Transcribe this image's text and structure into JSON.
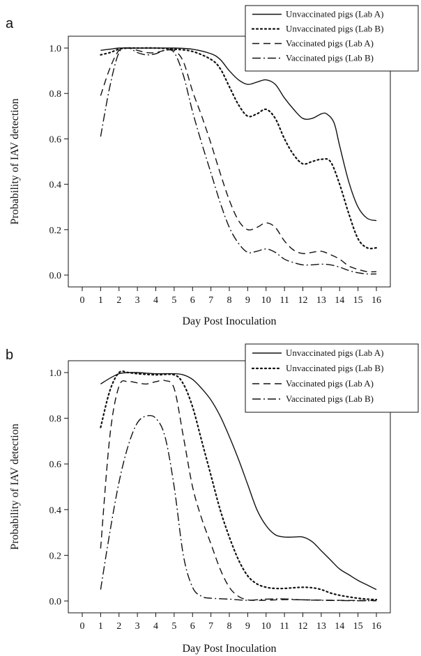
{
  "chart_data": [
    {
      "panel": "a",
      "type": "line",
      "title": "",
      "xlabel": "Day Post Inoculation",
      "ylabel": "Probability of IAV detection",
      "xlim": [
        0,
        16
      ],
      "ylim": [
        0,
        1
      ],
      "x_ticks": [
        "0",
        "1",
        "2",
        "3",
        "4",
        "5",
        "6",
        "7",
        "8",
        "9",
        "10",
        "11",
        "12",
        "13",
        "14",
        "15",
        "16"
      ],
      "y_ticks": [
        "0.0",
        "0.2",
        "0.4",
        "0.6",
        "0.8",
        "1.0"
      ],
      "grid": false,
      "legend_position": "top-right",
      "series": [
        {
          "name": "Unvaccinated pigs (Lab A)",
          "style": "solid",
          "points": [
            [
              1,
              0.99
            ],
            [
              1.5,
              0.995
            ],
            [
              2,
              1.0
            ],
            [
              2.5,
              1.0
            ],
            [
              3,
              1.0
            ],
            [
              4,
              1.0
            ],
            [
              5,
              1.0
            ],
            [
              6,
              0.995
            ],
            [
              7,
              0.975
            ],
            [
              7.5,
              0.95
            ],
            [
              8,
              0.9
            ],
            [
              8.5,
              0.86
            ],
            [
              9,
              0.84
            ],
            [
              9.5,
              0.85
            ],
            [
              10,
              0.86
            ],
            [
              10.5,
              0.84
            ],
            [
              11,
              0.78
            ],
            [
              11.5,
              0.73
            ],
            [
              12,
              0.69
            ],
            [
              12.5,
              0.69
            ],
            [
              13,
              0.71
            ],
            [
              13.3,
              0.71
            ],
            [
              13.7,
              0.67
            ],
            [
              14,
              0.57
            ],
            [
              14.5,
              0.41
            ],
            [
              15,
              0.3
            ],
            [
              15.5,
              0.25
            ],
            [
              16,
              0.24
            ]
          ]
        },
        {
          "name": "Unvaccinated pigs (Lab B)",
          "style": "dotted",
          "points": [
            [
              1,
              0.97
            ],
            [
              1.5,
              0.98
            ],
            [
              2,
              0.995
            ],
            [
              2.5,
              1.0
            ],
            [
              3,
              1.0
            ],
            [
              4,
              1.0
            ],
            [
              5,
              0.995
            ],
            [
              6,
              0.985
            ],
            [
              7,
              0.95
            ],
            [
              7.5,
              0.91
            ],
            [
              8,
              0.83
            ],
            [
              8.5,
              0.75
            ],
            [
              9,
              0.7
            ],
            [
              9.5,
              0.71
            ],
            [
              10,
              0.73
            ],
            [
              10.5,
              0.69
            ],
            [
              11,
              0.6
            ],
            [
              11.5,
              0.53
            ],
            [
              12,
              0.49
            ],
            [
              12.5,
              0.5
            ],
            [
              13,
              0.51
            ],
            [
              13.5,
              0.5
            ],
            [
              14,
              0.4
            ],
            [
              14.5,
              0.27
            ],
            [
              15,
              0.16
            ],
            [
              15.5,
              0.12
            ],
            [
              16,
              0.12
            ]
          ]
        },
        {
          "name": "Vaccinated pigs (Lab A)",
          "style": "dashed",
          "points": [
            [
              1,
              0.79
            ],
            [
              1.5,
              0.91
            ],
            [
              2,
              0.99
            ],
            [
              2.5,
              1.0
            ],
            [
              3,
              0.99
            ],
            [
              3.5,
              0.98
            ],
            [
              4,
              0.98
            ],
            [
              4.5,
              0.99
            ],
            [
              5,
              0.99
            ],
            [
              5.5,
              0.94
            ],
            [
              6,
              0.81
            ],
            [
              6.5,
              0.7
            ],
            [
              7,
              0.58
            ],
            [
              7.5,
              0.45
            ],
            [
              8,
              0.33
            ],
            [
              8.5,
              0.24
            ],
            [
              9,
              0.2
            ],
            [
              9.5,
              0.21
            ],
            [
              10,
              0.23
            ],
            [
              10.5,
              0.21
            ],
            [
              11,
              0.15
            ],
            [
              11.5,
              0.11
            ],
            [
              12,
              0.095
            ],
            [
              12.5,
              0.1
            ],
            [
              13,
              0.105
            ],
            [
              13.5,
              0.09
            ],
            [
              14,
              0.07
            ],
            [
              14.5,
              0.04
            ],
            [
              15,
              0.025
            ],
            [
              15.5,
              0.015
            ],
            [
              16,
              0.015
            ]
          ]
        },
        {
          "name": "Vaccinated pigs (Lab B)",
          "style": "dashdot",
          "points": [
            [
              1,
              0.61
            ],
            [
              1.5,
              0.83
            ],
            [
              2,
              0.98
            ],
            [
              2.5,
              1.0
            ],
            [
              3,
              0.98
            ],
            [
              3.5,
              0.97
            ],
            [
              4,
              0.975
            ],
            [
              4.5,
              0.99
            ],
            [
              5,
              0.98
            ],
            [
              5.5,
              0.88
            ],
            [
              6,
              0.72
            ],
            [
              6.5,
              0.58
            ],
            [
              7,
              0.45
            ],
            [
              7.5,
              0.32
            ],
            [
              8,
              0.21
            ],
            [
              8.5,
              0.14
            ],
            [
              9,
              0.1
            ],
            [
              9.5,
              0.105
            ],
            [
              10,
              0.115
            ],
            [
              10.5,
              0.1
            ],
            [
              11,
              0.07
            ],
            [
              11.5,
              0.055
            ],
            [
              12,
              0.045
            ],
            [
              12.5,
              0.045
            ],
            [
              13,
              0.048
            ],
            [
              13.5,
              0.045
            ],
            [
              14,
              0.035
            ],
            [
              14.5,
              0.02
            ],
            [
              15,
              0.01
            ],
            [
              15.5,
              0.005
            ],
            [
              16,
              0.005
            ]
          ]
        }
      ]
    },
    {
      "panel": "b",
      "type": "line",
      "title": "",
      "xlabel": "Day Post Inoculation",
      "ylabel": "Probability of IAV detection",
      "xlim": [
        0,
        16
      ],
      "ylim": [
        0,
        1
      ],
      "x_ticks": [
        "0",
        "1",
        "2",
        "3",
        "4",
        "5",
        "6",
        "7",
        "8",
        "9",
        "10",
        "11",
        "12",
        "13",
        "14",
        "15",
        "16"
      ],
      "y_ticks": [
        "0.0",
        "0.2",
        "0.4",
        "0.6",
        "0.8",
        "1.0"
      ],
      "grid": false,
      "legend_position": "top-right",
      "series": [
        {
          "name": "Unvaccinated pigs (Lab A)",
          "style": "solid",
          "points": [
            [
              1,
              0.95
            ],
            [
              1.5,
              0.975
            ],
            [
              2,
              0.995
            ],
            [
              2.5,
              1.0
            ],
            [
              3,
              1.0
            ],
            [
              4,
              0.995
            ],
            [
              5,
              0.995
            ],
            [
              5.5,
              0.99
            ],
            [
              6,
              0.97
            ],
            [
              6.5,
              0.93
            ],
            [
              7,
              0.88
            ],
            [
              7.5,
              0.81
            ],
            [
              8,
              0.72
            ],
            [
              8.5,
              0.62
            ],
            [
              9,
              0.51
            ],
            [
              9.5,
              0.4
            ],
            [
              10,
              0.33
            ],
            [
              10.5,
              0.29
            ],
            [
              11,
              0.28
            ],
            [
              11.5,
              0.28
            ],
            [
              12,
              0.28
            ],
            [
              12.5,
              0.26
            ],
            [
              13,
              0.22
            ],
            [
              13.5,
              0.18
            ],
            [
              14,
              0.14
            ],
            [
              14.5,
              0.115
            ],
            [
              15,
              0.09
            ],
            [
              15.5,
              0.07
            ],
            [
              16,
              0.05
            ]
          ]
        },
        {
          "name": "Unvaccinated pigs (Lab B)",
          "style": "dotted",
          "points": [
            [
              1,
              0.76
            ],
            [
              1.5,
              0.92
            ],
            [
              2,
              1.0
            ],
            [
              2.5,
              1.0
            ],
            [
              3,
              0.995
            ],
            [
              4,
              0.99
            ],
            [
              5,
              0.99
            ],
            [
              5.5,
              0.95
            ],
            [
              6,
              0.85
            ],
            [
              6.5,
              0.7
            ],
            [
              7,
              0.55
            ],
            [
              7.5,
              0.4
            ],
            [
              8,
              0.28
            ],
            [
              8.5,
              0.18
            ],
            [
              9,
              0.11
            ],
            [
              9.5,
              0.075
            ],
            [
              10,
              0.06
            ],
            [
              10.5,
              0.055
            ],
            [
              11,
              0.055
            ],
            [
              11.5,
              0.058
            ],
            [
              12,
              0.06
            ],
            [
              12.5,
              0.058
            ],
            [
              13,
              0.05
            ],
            [
              13.5,
              0.035
            ],
            [
              14,
              0.025
            ],
            [
              14.5,
              0.018
            ],
            [
              15,
              0.012
            ],
            [
              15.5,
              0.008
            ],
            [
              16,
              0.006
            ]
          ]
        },
        {
          "name": "Vaccinated pigs (Lab A)",
          "style": "dashed",
          "points": [
            [
              1,
              0.23
            ],
            [
              1.5,
              0.72
            ],
            [
              2,
              0.94
            ],
            [
              2.5,
              0.96
            ],
            [
              3,
              0.955
            ],
            [
              3.5,
              0.95
            ],
            [
              4,
              0.96
            ],
            [
              4.5,
              0.965
            ],
            [
              5,
              0.93
            ],
            [
              5.5,
              0.72
            ],
            [
              6,
              0.5
            ],
            [
              6.5,
              0.36
            ],
            [
              7,
              0.25
            ],
            [
              7.5,
              0.14
            ],
            [
              8,
              0.06
            ],
            [
              8.5,
              0.02
            ],
            [
              9,
              0.005
            ],
            [
              9.5,
              0.003
            ],
            [
              10,
              0.003
            ],
            [
              11,
              0.006
            ],
            [
              12,
              0.005
            ],
            [
              13,
              0.004
            ],
            [
              14,
              0.003
            ],
            [
              15,
              0.002
            ],
            [
              16,
              0.002
            ]
          ]
        },
        {
          "name": "Vaccinated pigs (Lab B)",
          "style": "dashdot",
          "points": [
            [
              1,
              0.05
            ],
            [
              1.5,
              0.3
            ],
            [
              2,
              0.52
            ],
            [
              2.5,
              0.68
            ],
            [
              3,
              0.78
            ],
            [
              3.5,
              0.81
            ],
            [
              4,
              0.8
            ],
            [
              4.5,
              0.72
            ],
            [
              5,
              0.5
            ],
            [
              5.5,
              0.2
            ],
            [
              6,
              0.06
            ],
            [
              6.5,
              0.02
            ],
            [
              7,
              0.012
            ],
            [
              8,
              0.008
            ],
            [
              9,
              0.003
            ],
            [
              10,
              0.008
            ],
            [
              11,
              0.009
            ],
            [
              12,
              0.005
            ],
            [
              13,
              0.003
            ],
            [
              14,
              0.002
            ],
            [
              15,
              0.001
            ],
            [
              16,
              0.001
            ]
          ]
        }
      ]
    }
  ]
}
